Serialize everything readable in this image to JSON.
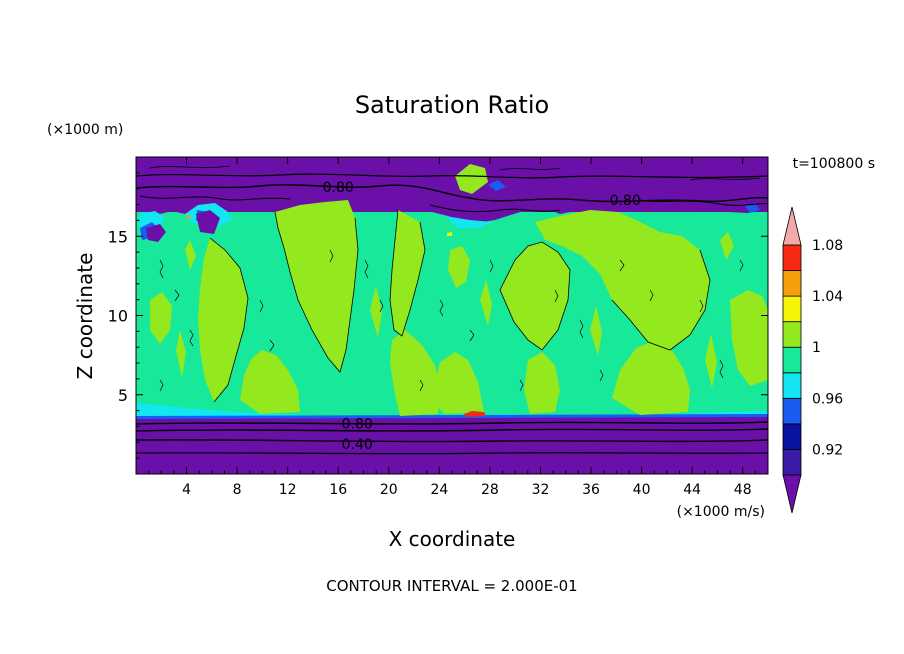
{
  "chart_data": {
    "type": "heatmap",
    "title": "Saturation Ratio",
    "time_label": "t=100800 s",
    "xlabel": "X coordinate",
    "ylabel": "Z coordinate",
    "x_unit": "(×1000 m/s)",
    "y_unit": "(×1000 m)",
    "footer": "CONTOUR INTERVAL = 2.000E-01",
    "xlim": [
      0,
      50
    ],
    "ylim": [
      0,
      20
    ],
    "x_ticks": [
      4,
      8,
      12,
      16,
      20,
      24,
      28,
      32,
      36,
      40,
      44,
      48
    ],
    "y_ticks": [
      5,
      10,
      15
    ],
    "colorbar": {
      "levels": [
        0.92,
        0.94,
        0.96,
        0.98,
        1,
        1.02,
        1.04,
        1.06,
        1.08,
        1.1
      ],
      "labels": [
        "0.92",
        "0.96",
        "1",
        "1.04",
        "1.08"
      ],
      "label_values": [
        0.92,
        0.96,
        1,
        1.04,
        1.08
      ],
      "colors": [
        "#6a0fa8",
        "#3a1ca6",
        "#0a12a0",
        "#1a5cf0",
        "#12e6f0",
        "#18e89a",
        "#93e81e",
        "#f5f50a",
        "#f5a00a",
        "#f52a14",
        "#f2a9a9"
      ]
    },
    "contour_labels": [
      {
        "text": "0.80",
        "x": 16.0,
        "z": 18.1
      },
      {
        "text": "0.80",
        "x": 38.7,
        "z": 17.3
      },
      {
        "text": "0.80",
        "x": 17.5,
        "z": 3.2
      },
      {
        "text": "0.40",
        "x": 17.5,
        "z": 1.9
      }
    ],
    "regions": [
      {
        "name": "lower dry layer",
        "z": [
          0,
          3.6
        ],
        "value": 0.4
      },
      {
        "name": "moist band",
        "z": [
          3.6,
          16.5
        ],
        "value": 1.0
      },
      {
        "name": "upper dry layer",
        "z": [
          16.5,
          20
        ],
        "value": 0.8
      }
    ]
  }
}
